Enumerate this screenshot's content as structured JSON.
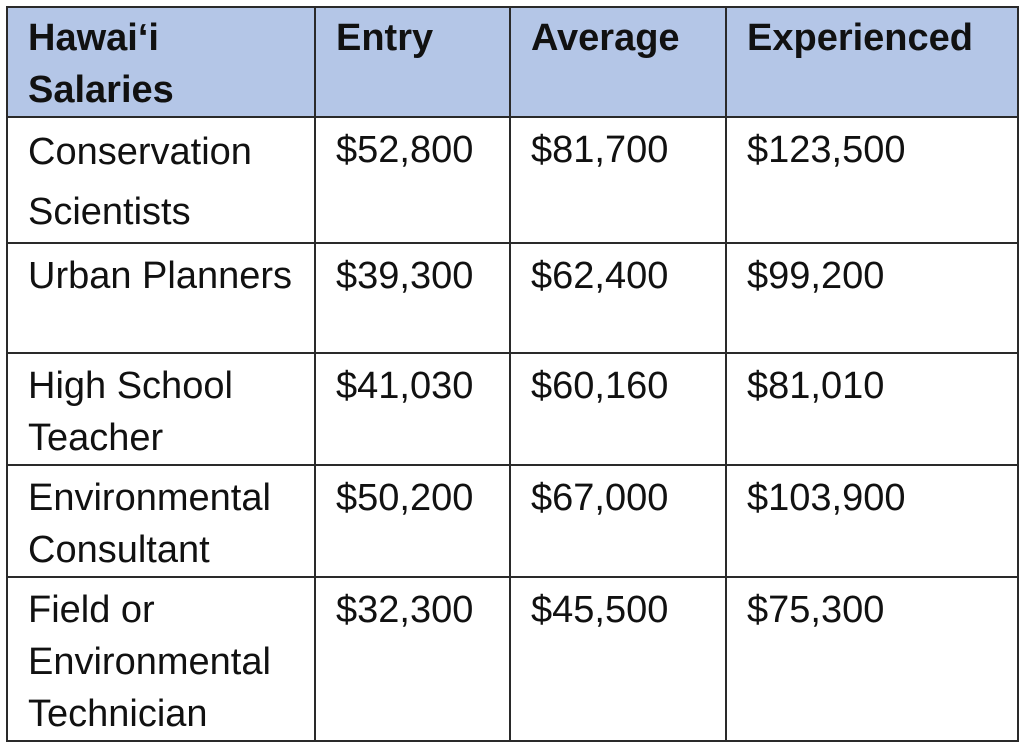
{
  "table": {
    "headers": [
      "Hawai‘i Salaries",
      "Entry",
      "Average",
      "Experienced"
    ],
    "header_fill": "#b4c6e7",
    "rows": [
      {
        "job": "Conservation Scientists",
        "entry": "$52,800",
        "average": "$81,700",
        "experienced": "$123,500"
      },
      {
        "job": "Urban Planners",
        "entry": "$39,300",
        "average": "$62,400",
        "experienced": "$99,200"
      },
      {
        "job": "High School Teacher",
        "entry": "$41,030",
        "average": "$60,160",
        "experienced": "$81,010"
      },
      {
        "job": "Environmental Consultant",
        "entry": "$50,200",
        "average": "$67,000",
        "experienced": "$103,900"
      },
      {
        "job": "Field or Environmental Technician",
        "entry": "$32,300",
        "average": "$45,500",
        "experienced": "$75,300"
      }
    ]
  }
}
